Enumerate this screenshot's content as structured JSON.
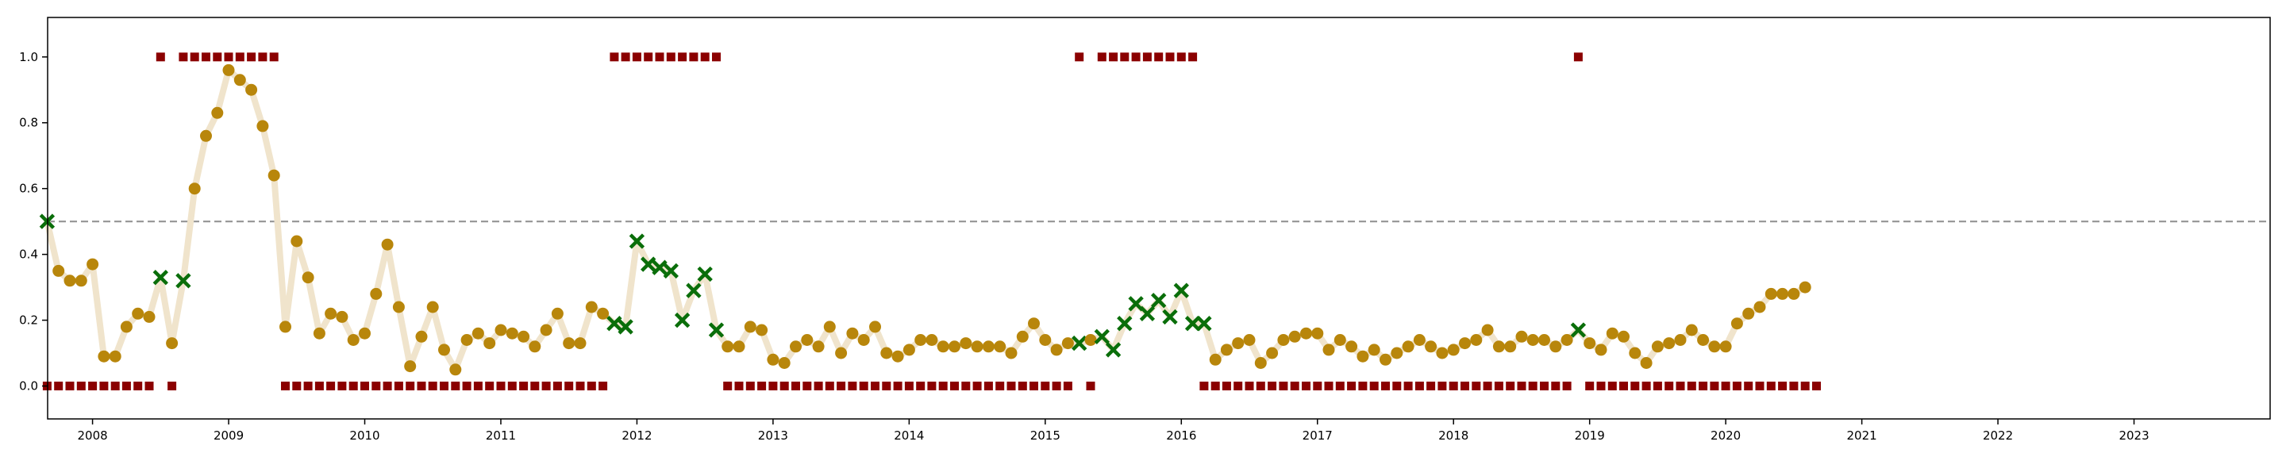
{
  "chart_data": {
    "type": "scatter",
    "title": "",
    "xlabel": "",
    "ylabel": "",
    "xlim": [
      2007.67,
      2024.0
    ],
    "ylim": [
      -0.1,
      1.12
    ],
    "grid": false,
    "legend": "none",
    "x_ticks": [
      2008,
      2009,
      2010,
      2011,
      2012,
      2013,
      2014,
      2015,
      2016,
      2017,
      2018,
      2019,
      2020,
      2021,
      2022,
      2023
    ],
    "x_tick_labels": [
      "2008",
      "2009",
      "2010",
      "2011",
      "2012",
      "2013",
      "2014",
      "2015",
      "2016",
      "2017",
      "2018",
      "2019",
      "2020",
      "2021",
      "2022",
      "2023"
    ],
    "y_ticks": [
      0.0,
      0.2,
      0.4,
      0.6,
      0.8,
      1.0
    ],
    "y_tick_labels": [
      "0.0",
      "0.2",
      "0.4",
      "0.6",
      "0.8",
      "1.0"
    ],
    "reference_line": {
      "y": 0.5,
      "style": "dashed",
      "color": "#999999"
    },
    "colors": {
      "trend_line": "#f0e4cc",
      "probability_point": "#b8860b",
      "flagged_point": "#0a6e0a",
      "label_marker": "#8b0000",
      "axis": "#000000"
    },
    "trend": {
      "start": "2007-09",
      "frequency": "monthly",
      "values": [
        0.5,
        0.35,
        0.32,
        0.32,
        0.37,
        0.09,
        0.09,
        0.18,
        0.22,
        0.21,
        0.33,
        0.13,
        0.32,
        0.6,
        0.76,
        0.83,
        0.96,
        0.93,
        0.9,
        0.79,
        0.64,
        0.18,
        0.44,
        0.33,
        0.16,
        0.22,
        0.21,
        0.14,
        0.16,
        0.28,
        0.43,
        0.24,
        0.06,
        0.15,
        0.24,
        0.11,
        0.05,
        0.14,
        0.16,
        0.13,
        0.17,
        0.16,
        0.15,
        0.12,
        0.17,
        0.22,
        0.13,
        0.13,
        0.24,
        0.22,
        0.19,
        0.18,
        0.44,
        0.37,
        0.36,
        0.35,
        0.2,
        0.29,
        0.34,
        0.17,
        0.12,
        0.12,
        0.18,
        0.17,
        0.08,
        0.07,
        0.12,
        0.14,
        0.12,
        0.18,
        0.1,
        0.16,
        0.14,
        0.18,
        0.1,
        0.09,
        0.11,
        0.14,
        0.14,
        0.12,
        0.12,
        0.13,
        0.12,
        0.12,
        0.12,
        0.1,
        0.15,
        0.19,
        0.14,
        0.11,
        0.13,
        0.13,
        0.14,
        0.15,
        0.11,
        0.19,
        0.25,
        0.22,
        0.26,
        0.21,
        0.29,
        0.19,
        0.19,
        0.08,
        0.11,
        0.13,
        0.14,
        0.07,
        0.1,
        0.14,
        0.15,
        0.16,
        0.16,
        0.11,
        0.14,
        0.12,
        0.09,
        0.11,
        0.08,
        0.1,
        0.12,
        0.14,
        0.12,
        0.1,
        0.11,
        0.13,
        0.14,
        0.17,
        0.12,
        0.12,
        0.15,
        0.14,
        0.14,
        0.12,
        0.14,
        0.17,
        0.13,
        0.11,
        0.16,
        0.15,
        0.1,
        0.07,
        0.12,
        0.13,
        0.14,
        0.17,
        0.14,
        0.12,
        0.12,
        0.19,
        0.22,
        0.24,
        0.28,
        0.28,
        0.28,
        0.3
      ],
      "flagged": [
        0,
        10,
        12,
        50,
        51,
        52,
        53,
        54,
        55,
        56,
        57,
        58,
        59,
        91,
        93,
        94,
        95,
        96,
        97,
        98,
        99,
        100,
        101,
        102,
        135
      ]
    },
    "labels": {
      "start": "2007-09",
      "frequency": "monthly",
      "values": [
        0,
        0,
        0,
        0,
        0,
        0,
        0,
        0,
        0,
        0,
        1,
        0,
        1,
        1,
        1,
        1,
        1,
        1,
        1,
        1,
        1,
        0,
        0,
        0,
        0,
        0,
        0,
        0,
        0,
        0,
        0,
        0,
        0,
        0,
        0,
        0,
        0,
        0,
        0,
        0,
        0,
        0,
        0,
        0,
        0,
        0,
        0,
        0,
        0,
        0,
        1,
        1,
        1,
        1,
        1,
        1,
        1,
        1,
        1,
        1,
        0,
        0,
        0,
        0,
        0,
        0,
        0,
        0,
        0,
        0,
        0,
        0,
        0,
        0,
        0,
        0,
        0,
        0,
        0,
        0,
        0,
        0,
        0,
        0,
        0,
        0,
        0,
        0,
        0,
        0,
        0,
        1,
        0,
        1,
        1,
        1,
        1,
        1,
        1,
        1,
        1,
        1,
        0,
        0,
        0,
        0,
        0,
        0,
        0,
        0,
        0,
        0,
        0,
        0,
        0,
        0,
        0,
        0,
        0,
        0,
        0,
        0,
        0,
        0,
        0,
        0,
        0,
        0,
        0,
        0,
        0,
        0,
        0,
        0,
        0,
        1,
        0,
        0,
        0,
        0,
        0,
        0,
        0,
        0,
        0,
        0,
        0,
        0,
        0,
        0,
        0,
        0,
        0,
        0,
        0,
        0,
        0
      ]
    }
  }
}
